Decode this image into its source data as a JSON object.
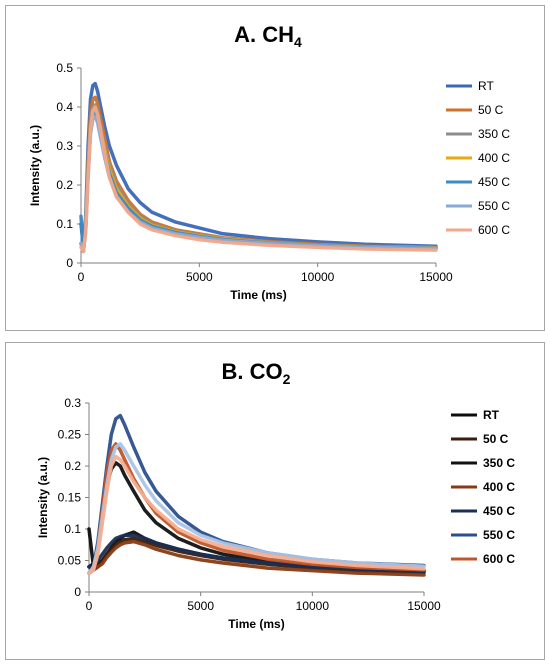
{
  "chart_data": [
    {
      "type": "line",
      "title": "A. CH",
      "title_sub": "4",
      "xlabel": "Time (ms)",
      "ylabel": "Intensity (a.u.)",
      "xlim": [
        0,
        15000
      ],
      "ylim": [
        0,
        0.5
      ],
      "xticks": [
        0,
        5000,
        10000,
        15000
      ],
      "yticks": [
        0,
        0.1,
        0.2,
        0.3,
        0.4,
        0.5
      ],
      "xtick_labels": [
        "0",
        "5000",
        "10000",
        "15000"
      ],
      "ytick_labels": [
        "0",
        "0.1",
        "0.2",
        "0.3",
        "0.4",
        "0.5"
      ],
      "grid": false,
      "legend": "right",
      "x": [
        0,
        100,
        200,
        300,
        400,
        500,
        600,
        700,
        800,
        1000,
        1200,
        1500,
        2000,
        2500,
        3000,
        4000,
        5000,
        6000,
        8000,
        10000,
        12000,
        15000
      ],
      "series": [
        {
          "name": "RT",
          "color": "#3a67b6",
          "values": [
            0.1,
            0.04,
            0.12,
            0.3,
            0.42,
            0.455,
            0.46,
            0.44,
            0.41,
            0.35,
            0.3,
            0.25,
            0.19,
            0.155,
            0.13,
            0.105,
            0.09,
            0.075,
            0.062,
            0.054,
            0.048,
            0.043
          ]
        },
        {
          "name": "50 C",
          "color": "#d0702b",
          "values": [
            0.05,
            0.03,
            0.1,
            0.26,
            0.38,
            0.42,
            0.425,
            0.41,
            0.38,
            0.32,
            0.26,
            0.21,
            0.16,
            0.125,
            0.105,
            0.085,
            0.075,
            0.065,
            0.055,
            0.048,
            0.043,
            0.04
          ]
        },
        {
          "name": "350 C",
          "color": "#8c8c8c",
          "values": [
            0.05,
            0.03,
            0.09,
            0.24,
            0.36,
            0.4,
            0.405,
            0.39,
            0.36,
            0.3,
            0.25,
            0.2,
            0.15,
            0.12,
            0.1,
            0.082,
            0.072,
            0.063,
            0.053,
            0.046,
            0.042,
            0.039
          ]
        },
        {
          "name": "400 C",
          "color": "#e8a810",
          "values": [
            0.05,
            0.03,
            0.09,
            0.24,
            0.35,
            0.39,
            0.395,
            0.38,
            0.35,
            0.29,
            0.24,
            0.19,
            0.145,
            0.115,
            0.097,
            0.08,
            0.07,
            0.062,
            0.052,
            0.046,
            0.042,
            0.039
          ]
        },
        {
          "name": "450 C",
          "color": "#3d8ac4",
          "values": [
            0.12,
            0.03,
            0.09,
            0.23,
            0.34,
            0.38,
            0.385,
            0.37,
            0.34,
            0.28,
            0.23,
            0.18,
            0.14,
            0.11,
            0.094,
            0.078,
            0.068,
            0.06,
            0.051,
            0.045,
            0.041,
            0.038
          ]
        },
        {
          "name": "550 C",
          "color": "#8aaad6",
          "values": [
            0.05,
            0.03,
            0.08,
            0.22,
            0.33,
            0.37,
            0.375,
            0.36,
            0.33,
            0.27,
            0.22,
            0.17,
            0.13,
            0.105,
            0.09,
            0.075,
            0.066,
            0.058,
            0.05,
            0.044,
            0.04,
            0.037
          ]
        },
        {
          "name": "600 C",
          "color": "#f2a68a",
          "values": [
            0.04,
            0.03,
            0.08,
            0.22,
            0.34,
            0.39,
            0.4,
            0.38,
            0.35,
            0.28,
            0.22,
            0.17,
            0.13,
            0.1,
            0.085,
            0.07,
            0.06,
            0.053,
            0.045,
            0.04,
            0.036,
            0.033
          ]
        }
      ]
    },
    {
      "type": "line",
      "title": "B. CO",
      "title_sub": "2",
      "xlabel": "Time (ms)",
      "ylabel": "Intensity (a.u.)",
      "xlim": [
        0,
        15000
      ],
      "ylim": [
        0,
        0.3
      ],
      "xticks": [
        0,
        5000,
        10000,
        15000
      ],
      "yticks": [
        0,
        0.05,
        0.1,
        0.15,
        0.2,
        0.25,
        0.3
      ],
      "xtick_labels": [
        "0",
        "5000",
        "10000",
        "15000"
      ],
      "ytick_labels": [
        "0",
        "0.05",
        "0.1",
        "0.15",
        "0.2",
        "0.25",
        "0.3"
      ],
      "grid": false,
      "legend": "right",
      "x": [
        0,
        200,
        400,
        600,
        800,
        1000,
        1200,
        1400,
        1600,
        2000,
        2500,
        3000,
        4000,
        5000,
        6000,
        8000,
        10000,
        12000,
        15000
      ],
      "series": [
        {
          "name": "RT",
          "color": "#0d0d0d",
          "values": [
            0.1,
            0.04,
            0.045,
            0.05,
            0.06,
            0.07,
            0.08,
            0.085,
            0.09,
            0.095,
            0.085,
            0.078,
            0.068,
            0.06,
            0.054,
            0.046,
            0.04,
            0.036,
            0.032
          ]
        },
        {
          "name": "50 C",
          "color": "#3a1d0c",
          "values": [
            0.04,
            0.035,
            0.04,
            0.05,
            0.06,
            0.068,
            0.075,
            0.08,
            0.083,
            0.085,
            0.08,
            0.074,
            0.065,
            0.058,
            0.052,
            0.044,
            0.038,
            0.034,
            0.031
          ]
        },
        {
          "name": "350 C",
          "color": "#111111",
          "values": [
            0.04,
            0.045,
            0.07,
            0.12,
            0.17,
            0.195,
            0.205,
            0.2,
            0.185,
            0.16,
            0.13,
            0.11,
            0.085,
            0.07,
            0.06,
            0.048,
            0.041,
            0.037,
            0.034
          ]
        },
        {
          "name": "400 C",
          "color": "#8a3a12",
          "values": [
            0.03,
            0.035,
            0.04,
            0.045,
            0.055,
            0.063,
            0.07,
            0.075,
            0.078,
            0.08,
            0.075,
            0.068,
            0.058,
            0.051,
            0.046,
            0.038,
            0.034,
            0.03,
            0.027
          ]
        },
        {
          "name": "450 C",
          "color": "#1a2f55",
          "values": [
            0.04,
            0.04,
            0.05,
            0.06,
            0.07,
            0.078,
            0.085,
            0.088,
            0.09,
            0.09,
            0.085,
            0.078,
            0.068,
            0.06,
            0.054,
            0.046,
            0.04,
            0.036,
            0.033
          ]
        },
        {
          "name": "550 C",
          "color": "#2b4f8e",
          "values": [
            0.03,
            0.04,
            0.08,
            0.14,
            0.2,
            0.25,
            0.275,
            0.28,
            0.265,
            0.23,
            0.19,
            0.16,
            0.12,
            0.095,
            0.08,
            0.062,
            0.052,
            0.046,
            0.042
          ]
        },
        {
          "name": "600 C",
          "color": "#c0562a",
          "values": [
            0.03,
            0.035,
            0.07,
            0.13,
            0.19,
            0.225,
            0.235,
            0.225,
            0.21,
            0.18,
            0.15,
            0.125,
            0.095,
            0.078,
            0.066,
            0.052,
            0.044,
            0.039,
            0.035
          ]
        },
        {
          "name": "",
          "color": "#a9c4e6",
          "values": [
            0.03,
            0.04,
            0.07,
            0.12,
            0.17,
            0.21,
            0.23,
            0.235,
            0.225,
            0.2,
            0.17,
            0.145,
            0.11,
            0.09,
            0.078,
            0.062,
            0.052,
            0.046,
            0.041
          ]
        },
        {
          "name": "",
          "color": "#f4ae90",
          "values": [
            0.03,
            0.035,
            0.06,
            0.11,
            0.16,
            0.2,
            0.215,
            0.21,
            0.2,
            0.175,
            0.15,
            0.13,
            0.1,
            0.083,
            0.072,
            0.058,
            0.048,
            0.042,
            0.037
          ]
        }
      ]
    }
  ]
}
